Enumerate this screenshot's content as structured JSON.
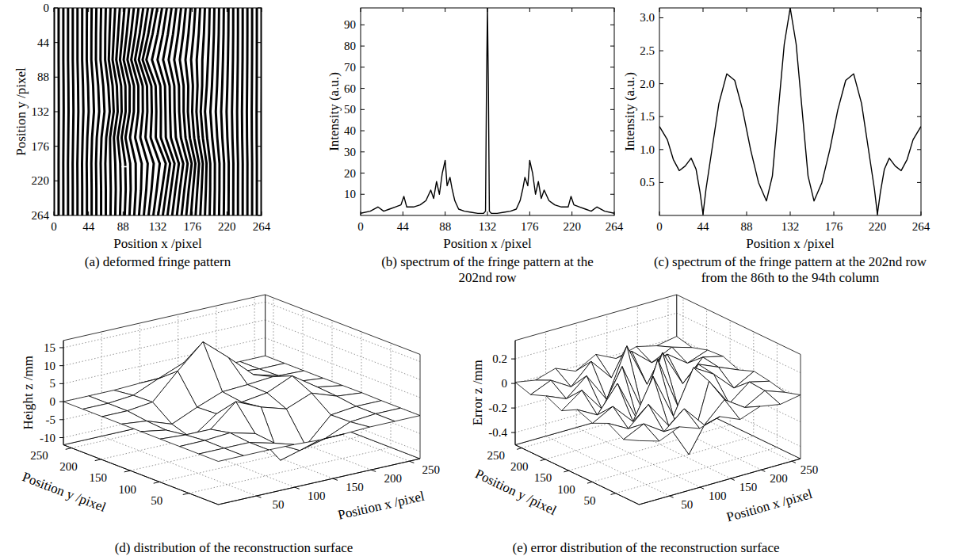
{
  "chart_data": [
    {
      "type": "image",
      "title": "(a) deformed fringe pattern",
      "x_label": "Position x /pixel",
      "y_label": "Position y /pixel",
      "xlim": [
        0,
        264
      ],
      "ylim": [
        0,
        264
      ],
      "xticks": [
        0,
        44,
        88,
        132,
        176,
        220,
        264
      ],
      "yticks": [
        0,
        44,
        88,
        132,
        176,
        220,
        264
      ],
      "fringe_period": 6,
      "grid_x": [
        0,
        33,
        66,
        99,
        132,
        165,
        198,
        231,
        264
      ],
      "grid_y": [
        0,
        33,
        66,
        99,
        132,
        165,
        198,
        231,
        264
      ],
      "fringe_shift": [
        [
          0,
          0,
          0,
          -0.3,
          -0.5,
          -0.3,
          0,
          0,
          0
        ],
        [
          0,
          0,
          -0.7,
          -3.7,
          -6.5,
          -3.8,
          -0.7,
          0,
          0
        ],
        [
          0,
          0,
          -0.9,
          -7.9,
          -14.4,
          -8.5,
          -2.1,
          -0.2,
          0
        ],
        [
          0,
          0.8,
          3.2,
          0.1,
          -2.6,
          -3.0,
          -3.6,
          -0.7,
          0
        ],
        [
          0,
          1.2,
          5.0,
          -0.2,
          -1.8,
          -2.8,
          -5.9,
          -1.2,
          -0.1
        ],
        [
          0,
          0.5,
          0.5,
          -5.6,
          -2.5,
          -0.4,
          -3.2,
          -0.8,
          -0.1
        ],
        [
          0,
          -0.2,
          -0.6,
          1.2,
          10.2,
          7.8,
          0.8,
          0.1,
          0
        ],
        [
          0,
          0,
          0,
          1.8,
          5.4,
          3.7,
          0.7,
          0,
          0
        ],
        [
          0,
          0,
          0,
          0.1,
          0.5,
          0.3,
          0,
          0,
          0
        ]
      ],
      "highlight_row": 202,
      "highlight_columns": [
        86,
        94
      ]
    },
    {
      "type": "line",
      "title": "(b) spectrum of the fringe pattern at the 202nd row",
      "x_label": "Position x /pixel",
      "y_label": "Intensity (a.u.)",
      "color": "#000000",
      "xlim": [
        0,
        264
      ],
      "ylim": [
        0,
        98
      ],
      "xticks": [
        0,
        44,
        88,
        132,
        176,
        220,
        264
      ],
      "yticks": [
        10,
        20,
        30,
        40,
        50,
        60,
        70,
        80,
        90
      ],
      "x": [
        0,
        10,
        18,
        24,
        30,
        36,
        42,
        45,
        48,
        55,
        62,
        68,
        73,
        76,
        79,
        82,
        85,
        88,
        90,
        93,
        95,
        98,
        102,
        108,
        115,
        122,
        128,
        130,
        131,
        132,
        133,
        134,
        136,
        142,
        149,
        156,
        162,
        166,
        169,
        171,
        174,
        176,
        179,
        182,
        185,
        188,
        191,
        196,
        202,
        209,
        216,
        219,
        222,
        228,
        234,
        240,
        246,
        254,
        264
      ],
      "values": [
        1,
        2,
        4,
        2,
        3,
        4,
        5,
        9,
        4,
        4,
        5,
        7,
        12,
        8,
        16,
        10,
        20,
        26,
        14,
        18,
        13,
        7,
        3,
        2,
        1.5,
        1,
        1,
        2,
        60,
        98,
        60,
        2,
        1,
        1,
        1.5,
        2,
        3,
        7,
        13,
        18,
        14,
        26,
        20,
        10,
        16,
        8,
        12,
        7,
        5,
        4,
        4,
        9,
        5,
        4,
        3,
        2,
        4,
        2,
        1
      ]
    },
    {
      "type": "line",
      "title": "(c) spectrum of the fringe pattern at the 202nd row from the 86th to the 94th column",
      "x_label": "Position x /pixel",
      "y_label": "Intensity (a.u.)",
      "color": "#000000",
      "xlim": [
        0,
        264
      ],
      "ylim": [
        0,
        3.15
      ],
      "xticks": [
        0,
        44,
        88,
        132,
        176,
        220,
        264
      ],
      "yticks": [
        0.5,
        {
          "value": 1,
          "label": "1.0"
        },
        1.5,
        {
          "value": 2,
          "label": "2.0"
        },
        2.5,
        {
          "value": 3,
          "label": "3.0"
        }
      ],
      "x": [
        0,
        8,
        14,
        20,
        26,
        32,
        37,
        41,
        44,
        47,
        54,
        60,
        68,
        76,
        84,
        92,
        100,
        108,
        114,
        120,
        126,
        132,
        138,
        144,
        150,
        156,
        164,
        172,
        180,
        188,
        196,
        204,
        210,
        217,
        220,
        223,
        227,
        232,
        238,
        244,
        250,
        256,
        264
      ],
      "values": [
        1.35,
        1.15,
        0.85,
        0.68,
        0.75,
        0.87,
        0.7,
        0.35,
        0.02,
        0.4,
        1.1,
        1.7,
        2.15,
        2.05,
        1.6,
        1.0,
        0.5,
        0.22,
        0.6,
        1.6,
        2.6,
        3.15,
        2.6,
        1.6,
        0.6,
        0.22,
        0.5,
        1.0,
        1.6,
        2.05,
        2.15,
        1.7,
        1.1,
        0.4,
        0.02,
        0.35,
        0.7,
        0.87,
        0.75,
        0.68,
        0.85,
        1.15,
        1.35
      ]
    },
    {
      "type": "surface",
      "title": "(d) distribution of the reconstruction surface",
      "x_label": "Position x /pixel",
      "y_label": "Position y /pixel",
      "z_label": "Height z /mm",
      "xlim": [
        0,
        264
      ],
      "ylim": [
        0,
        264
      ],
      "zlim": [
        -12,
        17
      ],
      "xticks": [
        50,
        100,
        150,
        200,
        250
      ],
      "yticks": [
        50,
        100,
        150,
        200,
        250
      ],
      "zticks": [
        -10,
        -5,
        0,
        5,
        10,
        15
      ],
      "x": [
        0,
        33,
        66,
        99,
        132,
        165,
        198,
        231,
        264
      ],
      "y": [
        0,
        33,
        66,
        99,
        132,
        165,
        198,
        231,
        264
      ],
      "z": [
        [
          0,
          0,
          0,
          -0.1,
          -0.45,
          -0.3,
          0,
          0,
          0
        ],
        [
          0,
          0,
          0,
          -1.8,
          -5.4,
          -3.7,
          -0.65,
          0,
          0
        ],
        [
          0,
          0.07,
          0.6,
          -1.2,
          -10.2,
          -7.8,
          -0.8,
          0,
          0
        ],
        [
          0,
          -0.45,
          -0.5,
          5.6,
          2.5,
          0.4,
          3.2,
          0.75,
          0.1
        ],
        [
          0,
          -1.2,
          -5.0,
          0.15,
          1.8,
          2.8,
          5.9,
          1.2,
          0.05
        ],
        [
          0,
          -0.75,
          -3.2,
          -0.1,
          2.6,
          3.0,
          3.6,
          0.7,
          0
        ],
        [
          0,
          0,
          0.85,
          7.9,
          14.4,
          8.5,
          2.1,
          0.2,
          0
        ],
        [
          0,
          0,
          0.65,
          3.7,
          6.5,
          3.8,
          0.7,
          0,
          0
        ],
        [
          0,
          0,
          0,
          0.3,
          0.54,
          0.3,
          0,
          0,
          0
        ]
      ]
    },
    {
      "type": "surface",
      "title": "(e) error distribution of the reconstruction surface",
      "x_label": "Position x /pixel",
      "y_label": "Position y /pixel",
      "z_label": "Error z /mm",
      "xlim": [
        0,
        264
      ],
      "ylim": [
        0,
        264
      ],
      "zlim": [
        -0.5,
        0.35
      ],
      "xticks": [
        50,
        100,
        150,
        200,
        250
      ],
      "yticks": [
        50,
        100,
        150,
        200,
        250
      ],
      "zticks": [
        -0.4,
        -0.2,
        0,
        0.2
      ],
      "x": [
        0,
        33,
        66,
        99,
        132,
        165,
        198,
        231,
        264
      ],
      "y": [
        0,
        33,
        66,
        99,
        132,
        165,
        198,
        231,
        264
      ],
      "z": [
        [
          0.02,
          -0.03,
          0.04,
          -0.02,
          0.03,
          -0.04,
          0.02,
          -0.01,
          0.02
        ],
        [
          -0.03,
          0.05,
          -0.06,
          0.08,
          -0.1,
          0.06,
          -0.05,
          0.04,
          -0.02
        ],
        [
          0.04,
          -0.05,
          0.1,
          -0.12,
          -0.4,
          0.15,
          -0.08,
          0.05,
          0.01
        ],
        [
          -0.02,
          0.07,
          -0.1,
          0.22,
          -0.15,
          0.2,
          0.1,
          -0.06,
          0.03
        ],
        [
          0.03,
          -0.06,
          0.15,
          -0.2,
          0.25,
          -0.18,
          0.12,
          0.05,
          -0.02
        ],
        [
          -0.04,
          0.08,
          -0.12,
          0.18,
          -0.22,
          0.2,
          -0.1,
          0.07,
          0.03
        ],
        [
          0.02,
          -0.05,
          0.09,
          -0.15,
          0.24,
          -0.12,
          0.08,
          -0.04,
          0.02
        ],
        [
          -0.03,
          0.04,
          -0.06,
          0.1,
          -0.08,
          0.09,
          -0.05,
          0.03,
          -0.02
        ],
        [
          0.01,
          -0.02,
          0.03,
          -0.04,
          0.05,
          -0.03,
          0.02,
          -0.02,
          0.01
        ]
      ]
    }
  ]
}
